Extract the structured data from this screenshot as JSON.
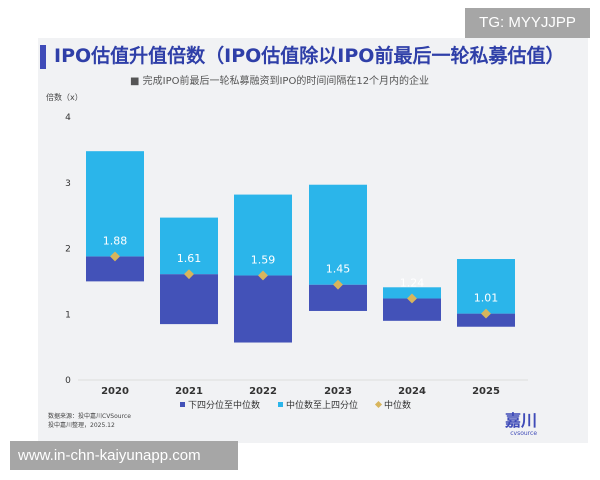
{
  "watermark_top": "TG: MYYJJPP",
  "watermark_bottom": "www.in-chn-kaiyunapp.com",
  "source_line1": "数据来源：投中嘉川CVSource",
  "source_line2": "投中嘉川整理，2025.12",
  "logo": "嘉川",
  "logo_sub": "cvsource",
  "chart_data": {
    "type": "bar",
    "title": "IPO估值升值倍数（IPO估值除以IPO前最后一轮私募估值）",
    "subtitle": "■ 完成IPO前最后一轮私募融资到IPO的时间间隔在12个月内的企业",
    "ylabel": "倍数（x）",
    "ylim": [
      0,
      4
    ],
    "yticks": [
      "0",
      "1",
      "2",
      "3",
      "4"
    ],
    "categories": [
      "2020",
      "2021",
      "2022",
      "2023",
      "2024",
      "2025"
    ],
    "series": [
      {
        "name": "下四分位至中位数",
        "color": "#4352b8",
        "values_low": [
          1.5,
          0.85,
          0.57,
          1.05,
          0.9,
          0.81
        ]
      },
      {
        "name": "中位数至上四分位",
        "color": "#2bb5ea",
        "values_high": [
          3.48,
          2.47,
          2.82,
          2.97,
          1.41,
          1.84
        ]
      },
      {
        "name": "中位数",
        "color": "#d8b55c",
        "values": [
          1.88,
          1.61,
          1.59,
          1.45,
          1.24,
          1.01
        ]
      }
    ],
    "data_labels": [
      "1.88",
      "1.61",
      "1.59",
      "1.45",
      "1.24",
      "1.01"
    ],
    "legend_position": "bottom",
    "grid": false
  }
}
